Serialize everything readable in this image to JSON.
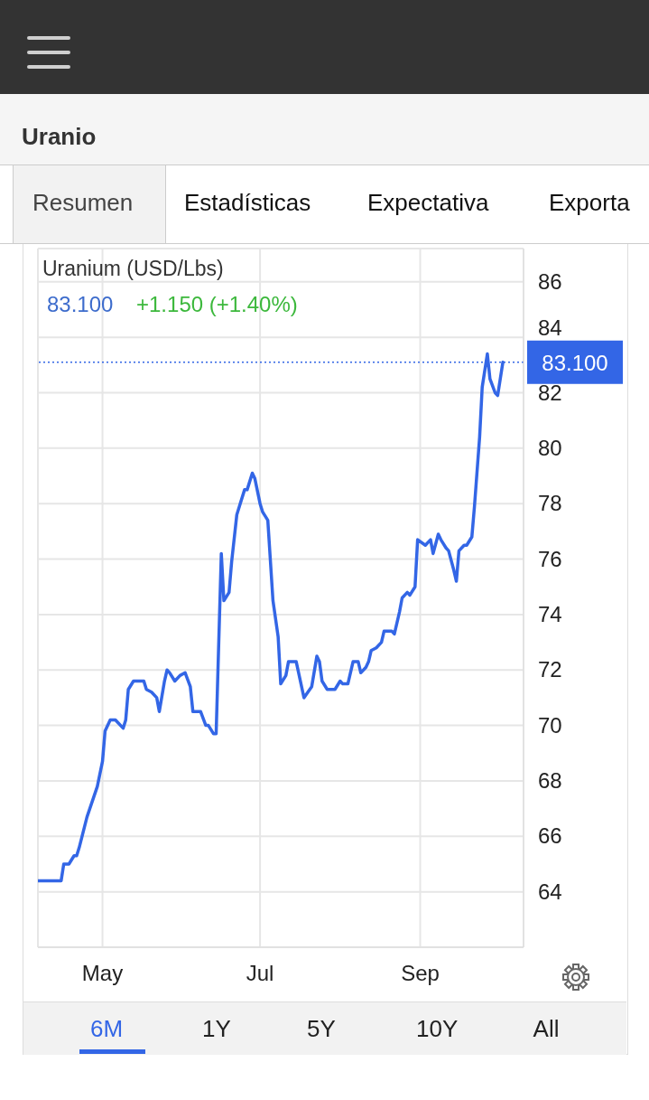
{
  "chart_data": {
    "type": "line",
    "title": "Uranium (USD/Lbs)",
    "subtitle": "83.100",
    "annotations": [
      "Uranio",
      "Resumen",
      "Estadísticas",
      "Expectativa",
      "Exporta",
      "+1.150 (+1.40%)",
      "6M",
      "1Y",
      "5Y",
      "10Y",
      "All"
    ],
    "x": [
      "--04-06",
      "--04-15",
      "--04-16",
      "--04-18",
      "--04-20",
      "--04-21",
      "--04-22",
      "--04-25",
      "--04-29",
      "--05-01",
      "--05-02",
      "--05-04",
      "--05-06",
      "--05-09",
      "--05-10",
      "--05-11",
      "--05-13",
      "--05-17",
      "--05-18",
      "--05-20",
      "--05-22",
      "--05-23",
      "--05-25",
      "--05-26",
      "--05-27",
      "--05-29",
      "--05-31",
      "--06-02",
      "--06-04",
      "--06-05",
      "--06-08",
      "--06-10",
      "--06-11",
      "--06-13",
      "--06-14",
      "--06-16",
      "--06-17",
      "--06-19",
      "--06-20",
      "--06-22",
      "--06-23",
      "--06-25",
      "--06-26",
      "--06-28",
      "--06-29",
      "--07-01",
      "--07-02",
      "--07-04",
      "--07-06",
      "--07-08",
      "--07-09",
      "--07-11",
      "--07-12",
      "--07-15",
      "--07-18",
      "--07-21",
      "--07-23",
      "--07-24",
      "--07-25",
      "--07-27",
      "--07-30",
      "--08-01",
      "--08-02",
      "--08-04",
      "--08-06",
      "--08-08",
      "--08-09",
      "--08-11",
      "--08-12",
      "--08-13",
      "--08-15",
      "--08-17",
      "--08-18",
      "--08-21",
      "--08-22",
      "--08-24",
      "--08-25",
      "--08-27",
      "--08-28",
      "--08-30",
      "--08-31",
      "--09-03",
      "--09-05",
      "--09-06",
      "--09-08",
      "--09-09",
      "--09-11",
      "--09-12",
      "--09-14",
      "--09-15",
      "--09-16",
      "--09-18",
      "--09-19",
      "--09-21",
      "--09-22",
      "--09-24",
      "--09-25",
      "--09-27",
      "--09-28",
      "--09-30",
      "--10-01",
      "--10-03"
    ],
    "series": [
      {
        "color": "#3366e6",
        "values": [
          64.4,
          64.4,
          65.0,
          65.0,
          65.3,
          65.3,
          65.6,
          66.7,
          67.8,
          68.7,
          69.8,
          70.2,
          70.2,
          69.9,
          70.2,
          71.3,
          71.6,
          71.6,
          71.3,
          71.2,
          71.0,
          70.5,
          71.6,
          72.0,
          71.9,
          71.6,
          71.8,
          71.9,
          71.4,
          70.5,
          70.5,
          70.0,
          70.0,
          69.7,
          69.7,
          76.2,
          74.5,
          74.8,
          75.9,
          77.6,
          77.9,
          78.5,
          78.5,
          79.1,
          78.9,
          78.0,
          77.7,
          77.4,
          74.5,
          73.2,
          71.5,
          71.8,
          72.3,
          72.3,
          71.0,
          71.4,
          72.5,
          72.3,
          71.6,
          71.3,
          71.3,
          71.6,
          71.5,
          71.5,
          72.3,
          72.3,
          71.9,
          72.1,
          72.3,
          72.7,
          72.8,
          73.0,
          73.4,
          73.4,
          73.3,
          74.1,
          74.6,
          74.8,
          74.7,
          75.0,
          76.7,
          76.5,
          76.7,
          76.2,
          76.9,
          76.7,
          76.4,
          76.3,
          75.6,
          75.2,
          76.3,
          76.5,
          76.5,
          76.8,
          77.9,
          80.4,
          82.2,
          83.4,
          82.5,
          82.0,
          81.9,
          83.1
        ]
      }
    ],
    "xlim": [
      "--04-06",
      "--10-11"
    ],
    "xticks": [
      {
        "value": "--05-01",
        "label": "May"
      },
      {
        "value": "--07-01",
        "label": "Jul"
      },
      {
        "value": "--09-01",
        "label": "Sep"
      }
    ],
    "ylim": [
      62,
      87.2
    ],
    "yticks": [
      64,
      66,
      68,
      70,
      72,
      74,
      76,
      78,
      80,
      82,
      84,
      86
    ],
    "ref_lines": [
      {
        "axis": "y",
        "value": 83.1,
        "label": "83.100",
        "color": "#3366e6",
        "line_style": "dotted"
      }
    ],
    "grid": true,
    "legend": false,
    "marker": "none",
    "line_style": "solid"
  }
}
